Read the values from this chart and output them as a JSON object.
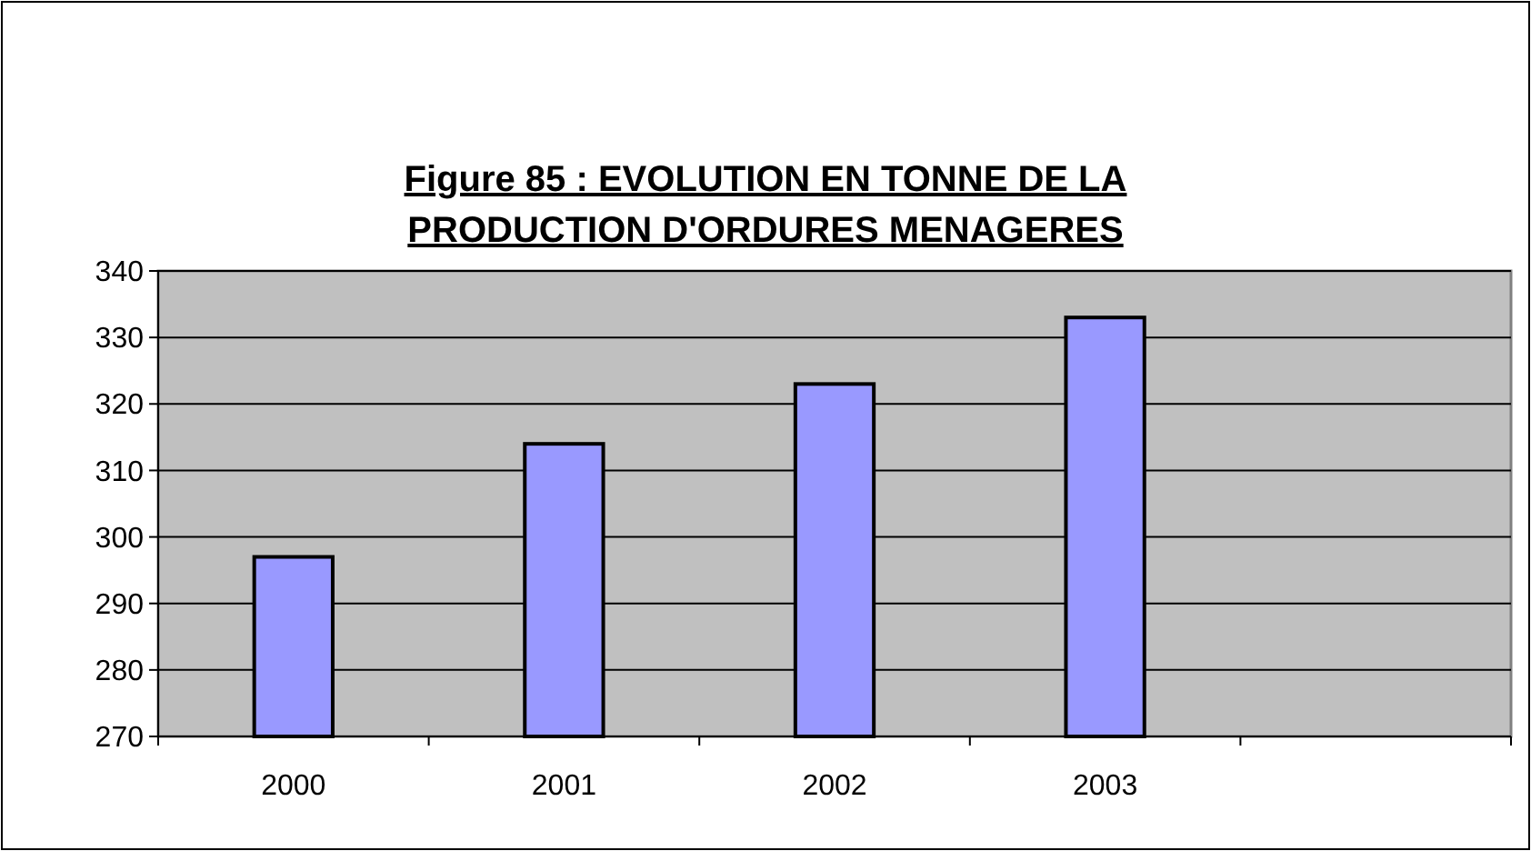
{
  "chart_data": {
    "type": "bar",
    "title": "Figure 85 : EVOLUTION EN TONNE DE LA PRODUCTION D'ORDURES MENAGERES",
    "categories": [
      "2000",
      "2001",
      "2002",
      "2003",
      null
    ],
    "values": [
      297,
      314,
      323,
      333,
      null
    ],
    "color": "#9999ff",
    "ylim": [
      270,
      340
    ],
    "yticks": [
      270,
      280,
      290,
      300,
      310,
      320,
      330,
      340
    ],
    "grid": "y"
  }
}
